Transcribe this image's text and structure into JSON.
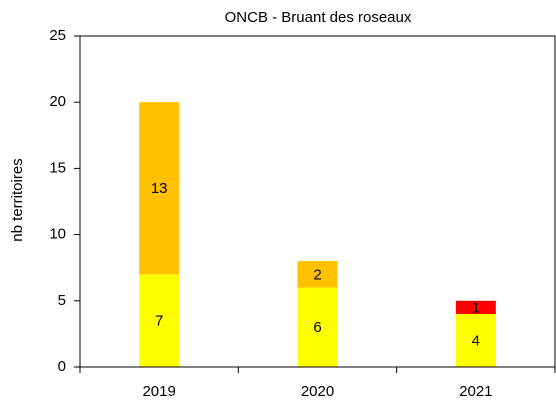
{
  "chart_data": {
    "type": "stacked_bar",
    "title": "ONCB - Bruant des roseaux",
    "y_label": "nb territoires",
    "categories": [
      "2019",
      "2020",
      "2021"
    ],
    "series": [
      {
        "color": "#ffff00",
        "values": [
          7,
          6,
          4
        ]
      },
      {
        "color": "#ffc000",
        "values": [
          13,
          2,
          null
        ]
      },
      {
        "color": "#ff0000",
        "values": [
          null,
          null,
          1
        ]
      }
    ],
    "ylim": [
      0,
      25
    ],
    "yticks": [
      0,
      5,
      10,
      15,
      20,
      25
    ],
    "grid": false
  }
}
